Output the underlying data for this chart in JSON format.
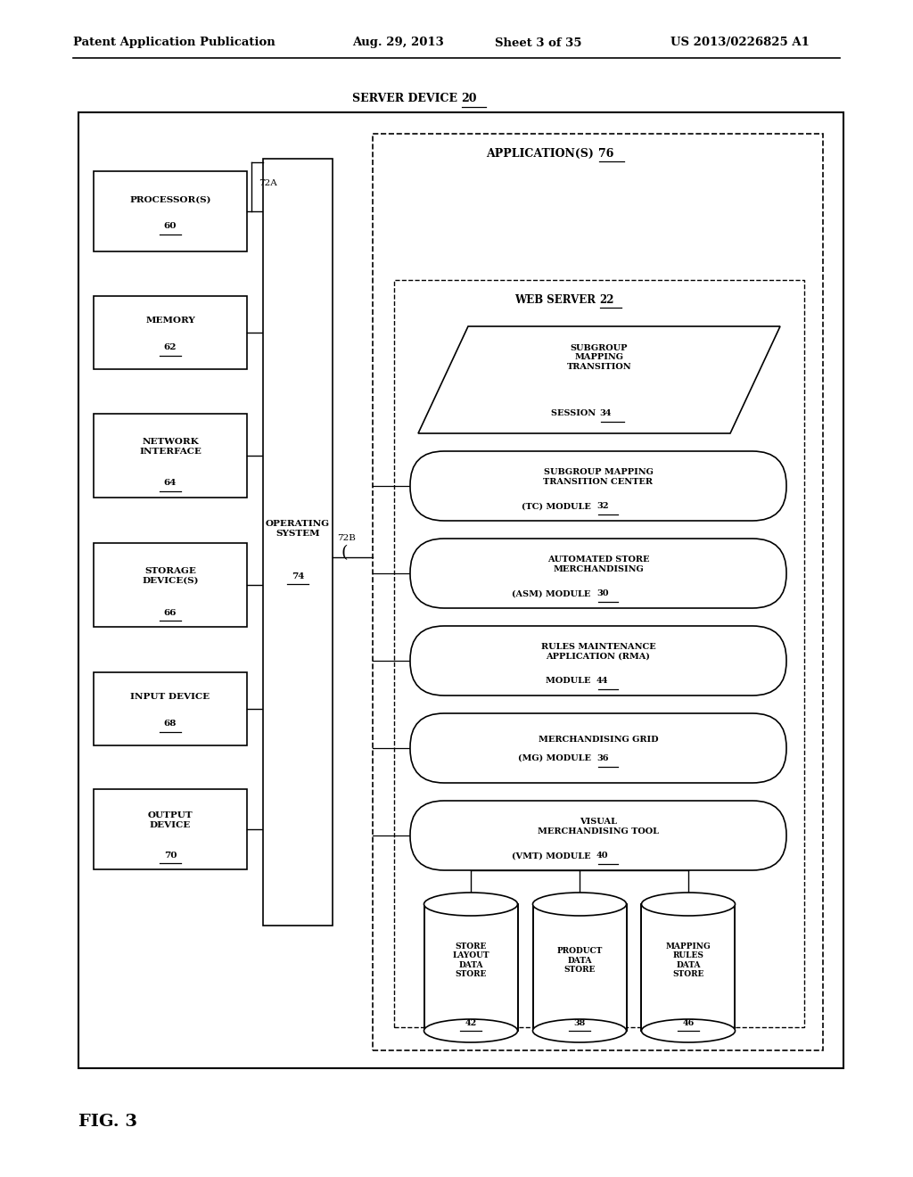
{
  "bg_color": "#ffffff",
  "header_text": "Patent Application Publication",
  "header_date": "Aug. 29, 2013",
  "header_sheet": "Sheet 3 of 35",
  "header_patent": "US 2013/0226825 A1",
  "fig_label": "FIG. 3",
  "server_label": "SERVER DEVICE",
  "server_num": "20",
  "app_label": "APPLICATION(S)",
  "app_num": "76",
  "ws_label": "WEB SERVER",
  "ws_num": "22",
  "os_label": "OPERATING\nSYSTEM",
  "os_num": "74",
  "bus_72a": "72A",
  "bus_72b": "72B",
  "left_boxes": [
    {
      "main": "PROCESSOR(S)",
      "num": "60"
    },
    {
      "main": "MEMORY",
      "num": "62"
    },
    {
      "main": "NETWORK\nINTERFACE",
      "num": "64"
    },
    {
      "main": "STORAGE\nDEVICE(S)",
      "num": "66"
    },
    {
      "main": "INPUT DEVICE",
      "num": "68"
    },
    {
      "main": "OUTPUT\nDEVICE",
      "num": "70"
    }
  ],
  "modules": [
    {
      "main": "SUBGROUP MAPPING\nTRANSITION CENTER\n(TC) MODULE",
      "num": "32",
      "shape": "ellipse"
    },
    {
      "main": "AUTOMATED STORE\nMERCHANDISING\n(ASM) MODULE",
      "num": "30",
      "shape": "ellipse"
    },
    {
      "main": "RULES MAINTENANCE\nAPPLICATION (RMA)\nMODULE",
      "num": "44",
      "shape": "ellipse"
    },
    {
      "main": "MERCHANDISING GRID\n(MG) MODULE",
      "num": "36",
      "shape": "ellipse"
    },
    {
      "main": "VISUAL\nMERCHANDISING TOOL\n(VMT) MODULE",
      "num": "40",
      "shape": "ellipse"
    }
  ],
  "datastores": [
    {
      "main": "STORE\nLAYOUT\nDATA\nSTORE",
      "num": "42"
    },
    {
      "main": "PRODUCT\nDATA\nSTORE",
      "num": "38"
    },
    {
      "main": "MAPPING\nRULES\nDATA\nSTORE",
      "num": "46"
    }
  ]
}
